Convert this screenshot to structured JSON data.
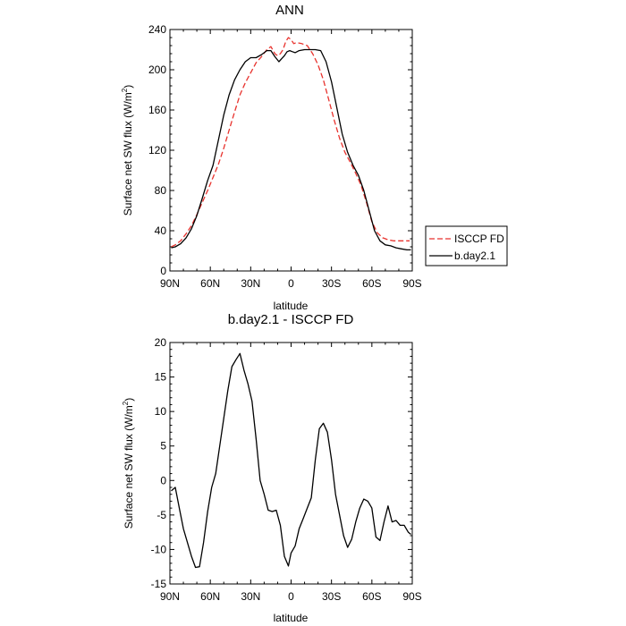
{
  "chart_data": [
    {
      "type": "line",
      "title": "ANN",
      "xlabel": "latitude",
      "ylabel": "Surface net SW flux (W/m²)",
      "ylabel_main": "Surface net SW flux (W/m",
      "ylabel_sup": "2",
      "ylabel_close": ")",
      "xlim": [
        90,
        -90
      ],
      "ylim": [
        0,
        240
      ],
      "x_ticks": [
        {
          "value": 90,
          "label": "90N"
        },
        {
          "value": 60,
          "label": "60N"
        },
        {
          "value": 30,
          "label": "30N"
        },
        {
          "value": 0,
          "label": "0"
        },
        {
          "value": -30,
          "label": "30S"
        },
        {
          "value": -60,
          "label": "60S"
        },
        {
          "value": -90,
          "label": "90S"
        }
      ],
      "y_ticks": [
        {
          "value": 0,
          "label": "0"
        },
        {
          "value": 40,
          "label": "40"
        },
        {
          "value": 80,
          "label": "80"
        },
        {
          "value": 120,
          "label": "120"
        },
        {
          "value": 160,
          "label": "160"
        },
        {
          "value": 200,
          "label": "200"
        },
        {
          "value": 240,
          "label": "240"
        }
      ],
      "legend_position": "right",
      "series": [
        {
          "name": "ISCCP FD",
          "color": "#e8322d",
          "dash": "dashed",
          "x": [
            89,
            86,
            82,
            78,
            74,
            70,
            66,
            62,
            58,
            54,
            50,
            46,
            42,
            38,
            34,
            30,
            26,
            22,
            18,
            15,
            12,
            10,
            8,
            6,
            4,
            2,
            0,
            -2,
            -4,
            -8,
            -12,
            -16,
            -20,
            -24,
            -28,
            -32,
            -36,
            -40,
            -44,
            -48,
            -52,
            -56,
            -60,
            -64,
            -68,
            -72,
            -76,
            -80,
            -84,
            -88
          ],
          "y": [
            24,
            26,
            30,
            37,
            45,
            56,
            68,
            80,
            93,
            106,
            122,
            140,
            158,
            175,
            187,
            197,
            207,
            213,
            220,
            223,
            216,
            214,
            216,
            220,
            228,
            232,
            230,
            226,
            227,
            226,
            224,
            216,
            205,
            190,
            170,
            150,
            132,
            118,
            108,
            97,
            85,
            68,
            49,
            38,
            33,
            31,
            30,
            30,
            30,
            30
          ]
        },
        {
          "name": "b.day2.1",
          "color": "#000000",
          "dash": "solid",
          "x": [
            89,
            86,
            82,
            78,
            74,
            70,
            66,
            62,
            58,
            54,
            50,
            46,
            42,
            38,
            34,
            30,
            26,
            22,
            18,
            15,
            12,
            9,
            7,
            5,
            3,
            1,
            -1,
            -3,
            -6,
            -10,
            -14,
            -18,
            -22,
            -26,
            -30,
            -34,
            -38,
            -42,
            -46,
            -50,
            -54,
            -58,
            -62,
            -66,
            -70,
            -74,
            -78,
            -82,
            -86,
            -89
          ],
          "y": [
            23,
            24,
            27,
            33,
            42,
            55,
            72,
            90,
            105,
            130,
            155,
            175,
            190,
            200,
            208,
            212,
            212,
            215,
            219,
            219,
            213,
            208,
            211,
            214,
            218,
            219,
            218,
            217,
            219,
            220,
            220,
            220,
            219,
            208,
            188,
            162,
            136,
            118,
            105,
            95,
            80,
            60,
            40,
            30,
            26,
            25,
            23,
            22,
            21,
            21
          ]
        }
      ]
    },
    {
      "type": "line",
      "title": "b.day2.1 - ISCCP FD",
      "xlabel": "latitude",
      "ylabel": "Surface net SW flux (W/m²)",
      "ylabel_main": "Surface net SW flux (W/m",
      "ylabel_sup": "2",
      "ylabel_close": ")",
      "xlim": [
        90,
        -90
      ],
      "ylim": [
        -15,
        20
      ],
      "x_ticks": [
        {
          "value": 90,
          "label": "90N"
        },
        {
          "value": 60,
          "label": "60N"
        },
        {
          "value": 30,
          "label": "30N"
        },
        {
          "value": 0,
          "label": "0"
        },
        {
          "value": -30,
          "label": "30S"
        },
        {
          "value": -60,
          "label": "60S"
        },
        {
          "value": -90,
          "label": "90S"
        }
      ],
      "y_ticks": [
        {
          "value": -15,
          "label": "-15"
        },
        {
          "value": -10,
          "label": "-10"
        },
        {
          "value": -5,
          "label": "-5"
        },
        {
          "value": 0,
          "label": "0"
        },
        {
          "value": 5,
          "label": "5"
        },
        {
          "value": 10,
          "label": "10"
        },
        {
          "value": 15,
          "label": "15"
        },
        {
          "value": 20,
          "label": "20"
        }
      ],
      "series": [
        {
          "name": "b.day2.1 - ISCCP FD",
          "color": "#000000",
          "dash": "solid",
          "x": [
            89,
            86,
            83,
            80,
            77,
            74,
            71,
            68,
            65,
            62,
            59,
            56,
            53,
            50,
            47,
            44,
            41,
            38,
            35,
            32,
            29,
            26,
            23,
            20,
            17,
            14,
            11,
            8,
            5,
            2,
            0,
            -3,
            -6,
            -9,
            -12,
            -15,
            -18,
            -21,
            -24,
            -27,
            -30,
            -33,
            -36,
            -39,
            -42,
            -45,
            -48,
            -51,
            -54,
            -57,
            -60,
            -63,
            -66,
            -69,
            -72,
            -75,
            -78,
            -81,
            -84,
            -87,
            -89
          ],
          "y": [
            -1.5,
            -1,
            -4,
            -7,
            -9,
            -11,
            -12.6,
            -12.5,
            -9,
            -4.5,
            -1,
            1,
            5,
            9,
            13,
            16.5,
            17.5,
            18.4,
            16,
            14,
            11.5,
            6,
            0,
            -2,
            -4.3,
            -4.5,
            -4.3,
            -6.5,
            -11,
            -12.4,
            -10.5,
            -9.5,
            -7,
            -5.5,
            -4,
            -2.5,
            3,
            7.5,
            8.3,
            7,
            3,
            -2,
            -5,
            -8,
            -9.7,
            -8.5,
            -6,
            -4,
            -2.7,
            -3,
            -4,
            -8.2,
            -8.7,
            -6,
            -3.7,
            -6,
            -5.8,
            -6.5,
            -6.5,
            -7.5,
            -7.8
          ]
        }
      ]
    }
  ]
}
